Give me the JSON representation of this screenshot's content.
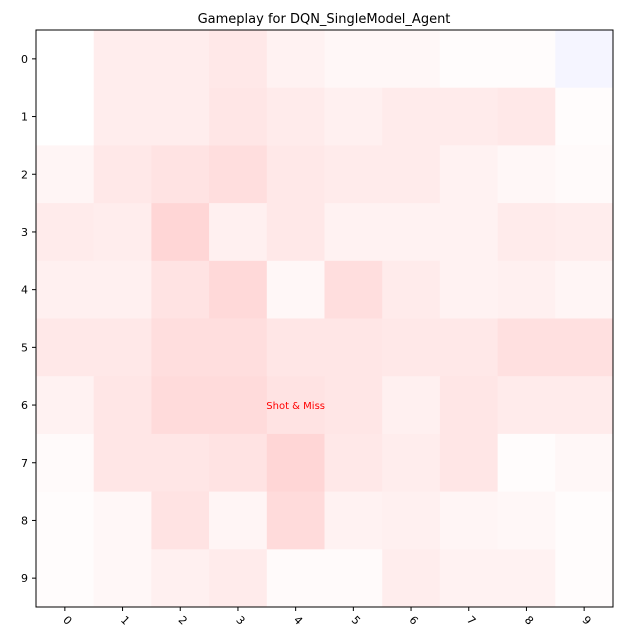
{
  "chart_data": {
    "type": "heatmap",
    "title": "Gameplay for DQN_SingleModel_Agent",
    "xlabel": "",
    "ylabel": "",
    "x_categories": [
      "0",
      "1",
      "2",
      "3",
      "4",
      "5",
      "6",
      "7",
      "8",
      "9"
    ],
    "y_categories": [
      "0",
      "1",
      "2",
      "3",
      "4",
      "5",
      "6",
      "7",
      "8",
      "9"
    ],
    "grid": false,
    "colors": {
      "positive": "#ff0000",
      "negative": "#0000ff",
      "annotation": "#ff0000"
    },
    "value_range": [
      -1,
      1
    ],
    "values": [
      [
        0.0,
        0.07,
        0.07,
        0.09,
        0.05,
        0.03,
        0.03,
        0.01,
        0.01,
        -0.04
      ],
      [
        0.0,
        0.07,
        0.07,
        0.1,
        0.08,
        0.06,
        0.08,
        0.08,
        0.09,
        0.01
      ],
      [
        0.04,
        0.09,
        0.11,
        0.13,
        0.09,
        0.08,
        0.08,
        0.05,
        0.03,
        0.02
      ],
      [
        0.08,
        0.07,
        0.16,
        0.06,
        0.09,
        0.05,
        0.05,
        0.05,
        0.08,
        0.07
      ],
      [
        0.06,
        0.06,
        0.11,
        0.15,
        0.03,
        0.13,
        0.08,
        0.05,
        0.06,
        0.04
      ],
      [
        0.09,
        0.09,
        0.13,
        0.13,
        0.1,
        0.1,
        0.09,
        0.09,
        0.12,
        0.12
      ],
      [
        0.05,
        0.1,
        0.14,
        0.14,
        0.11,
        0.1,
        0.06,
        0.1,
        0.08,
        0.08
      ],
      [
        0.02,
        0.1,
        0.1,
        0.11,
        0.16,
        0.09,
        0.07,
        0.1,
        0.01,
        0.03
      ],
      [
        0.01,
        0.03,
        0.11,
        0.04,
        0.14,
        0.05,
        0.06,
        0.04,
        0.03,
        0.01
      ],
      [
        0.01,
        0.03,
        0.06,
        0.08,
        0.02,
        0.02,
        0.07,
        0.05,
        0.05,
        0.01
      ]
    ],
    "annotations": [
      {
        "text": "Shot & Miss",
        "row": 6,
        "col": 4
      }
    ]
  }
}
